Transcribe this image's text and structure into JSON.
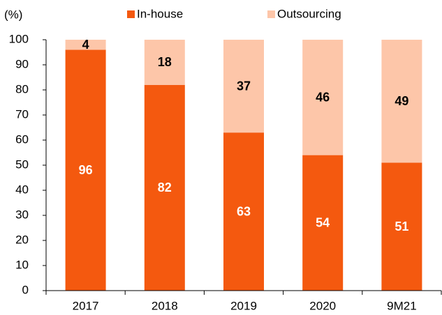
{
  "chart_data": {
    "type": "stacked_bar",
    "y_axis_label": "(%)",
    "categories": [
      "2017",
      "2018",
      "2019",
      "2020",
      "9M21"
    ],
    "series": [
      {
        "name": "In-house",
        "color": "#f4590f",
        "values": [
          96,
          82,
          63,
          54,
          51
        ]
      },
      {
        "name": "Outsourcing",
        "color": "#fdc6a9",
        "values": [
          4,
          18,
          37,
          46,
          49
        ]
      }
    ],
    "ylim": [
      0,
      100
    ],
    "yticks": [
      0,
      10,
      20,
      30,
      40,
      50,
      60,
      70,
      80,
      90,
      100
    ]
  }
}
